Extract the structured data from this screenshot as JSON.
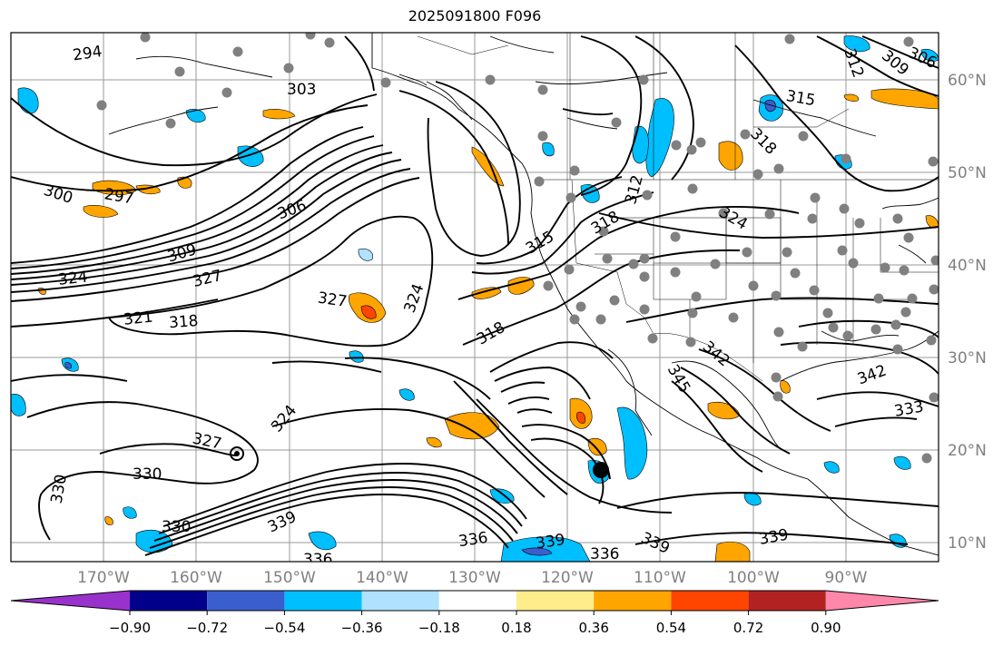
{
  "title": "2025091800 F096",
  "lon_labels": [
    "170°W",
    "160°W",
    "150°W",
    "140°W",
    "130°W",
    "120°W",
    "110°W",
    "100°W",
    "90°W"
  ],
  "lat_labels": [
    "60°N",
    "50°N",
    "40°N",
    "30°N",
    "20°N",
    "10°N"
  ],
  "colorbar": {
    "tick_labels": [
      "−0.90",
      "−0.72",
      "−0.54",
      "−0.36",
      "−0.18",
      "0.18",
      "0.36",
      "0.54",
      "0.72",
      "0.90"
    ],
    "colors": [
      "#9932cc",
      "#00008b",
      "#3a5fcd",
      "#00bfff",
      "#b0e2ff",
      "#ffffff",
      "#ffec8b",
      "#ffa500",
      "#ff4500",
      "#b22222",
      "#ff88aa"
    ]
  },
  "contour_labels": [
    {
      "id": "294",
      "text": "294"
    },
    {
      "id": "303",
      "text": "303"
    },
    {
      "id": "300",
      "text": "300"
    },
    {
      "id": "297",
      "text": "297"
    },
    {
      "id": "306",
      "text": "306"
    },
    {
      "id": "309",
      "text": "309"
    },
    {
      "id": "324a",
      "text": "324"
    },
    {
      "id": "327a",
      "text": "327"
    },
    {
      "id": "321",
      "text": "321"
    },
    {
      "id": "318a",
      "text": "318"
    },
    {
      "id": "327b",
      "text": "327"
    },
    {
      "id": "324b",
      "text": "324"
    },
    {
      "id": "318b",
      "text": "318"
    },
    {
      "id": "315a",
      "text": "315"
    },
    {
      "id": "318c",
      "text": "318"
    },
    {
      "id": "312a",
      "text": "312"
    },
    {
      "id": "315b",
      "text": "315"
    },
    {
      "id": "318d",
      "text": "318"
    },
    {
      "id": "324c",
      "text": "324"
    },
    {
      "id": "309b",
      "text": "309"
    },
    {
      "id": "306b",
      "text": "306"
    },
    {
      "id": "312b",
      "text": "312"
    },
    {
      "id": "330a",
      "text": "330"
    },
    {
      "id": "327c",
      "text": "327"
    },
    {
      "id": "324d",
      "text": "324"
    },
    {
      "id": "330b",
      "text": "330"
    },
    {
      "id": "330c",
      "text": "330"
    },
    {
      "id": "339a",
      "text": "339"
    },
    {
      "id": "336a",
      "text": "336"
    },
    {
      "id": "336b",
      "text": "336"
    },
    {
      "id": "339b",
      "text": "339"
    },
    {
      "id": "336c",
      "text": "336"
    },
    {
      "id": "339c",
      "text": "339"
    },
    {
      "id": "339d",
      "text": "339"
    },
    {
      "id": "345",
      "text": "345"
    },
    {
      "id": "342a",
      "text": "342"
    },
    {
      "id": "342b",
      "text": "342"
    },
    {
      "id": "333",
      "text": "333"
    }
  ]
}
